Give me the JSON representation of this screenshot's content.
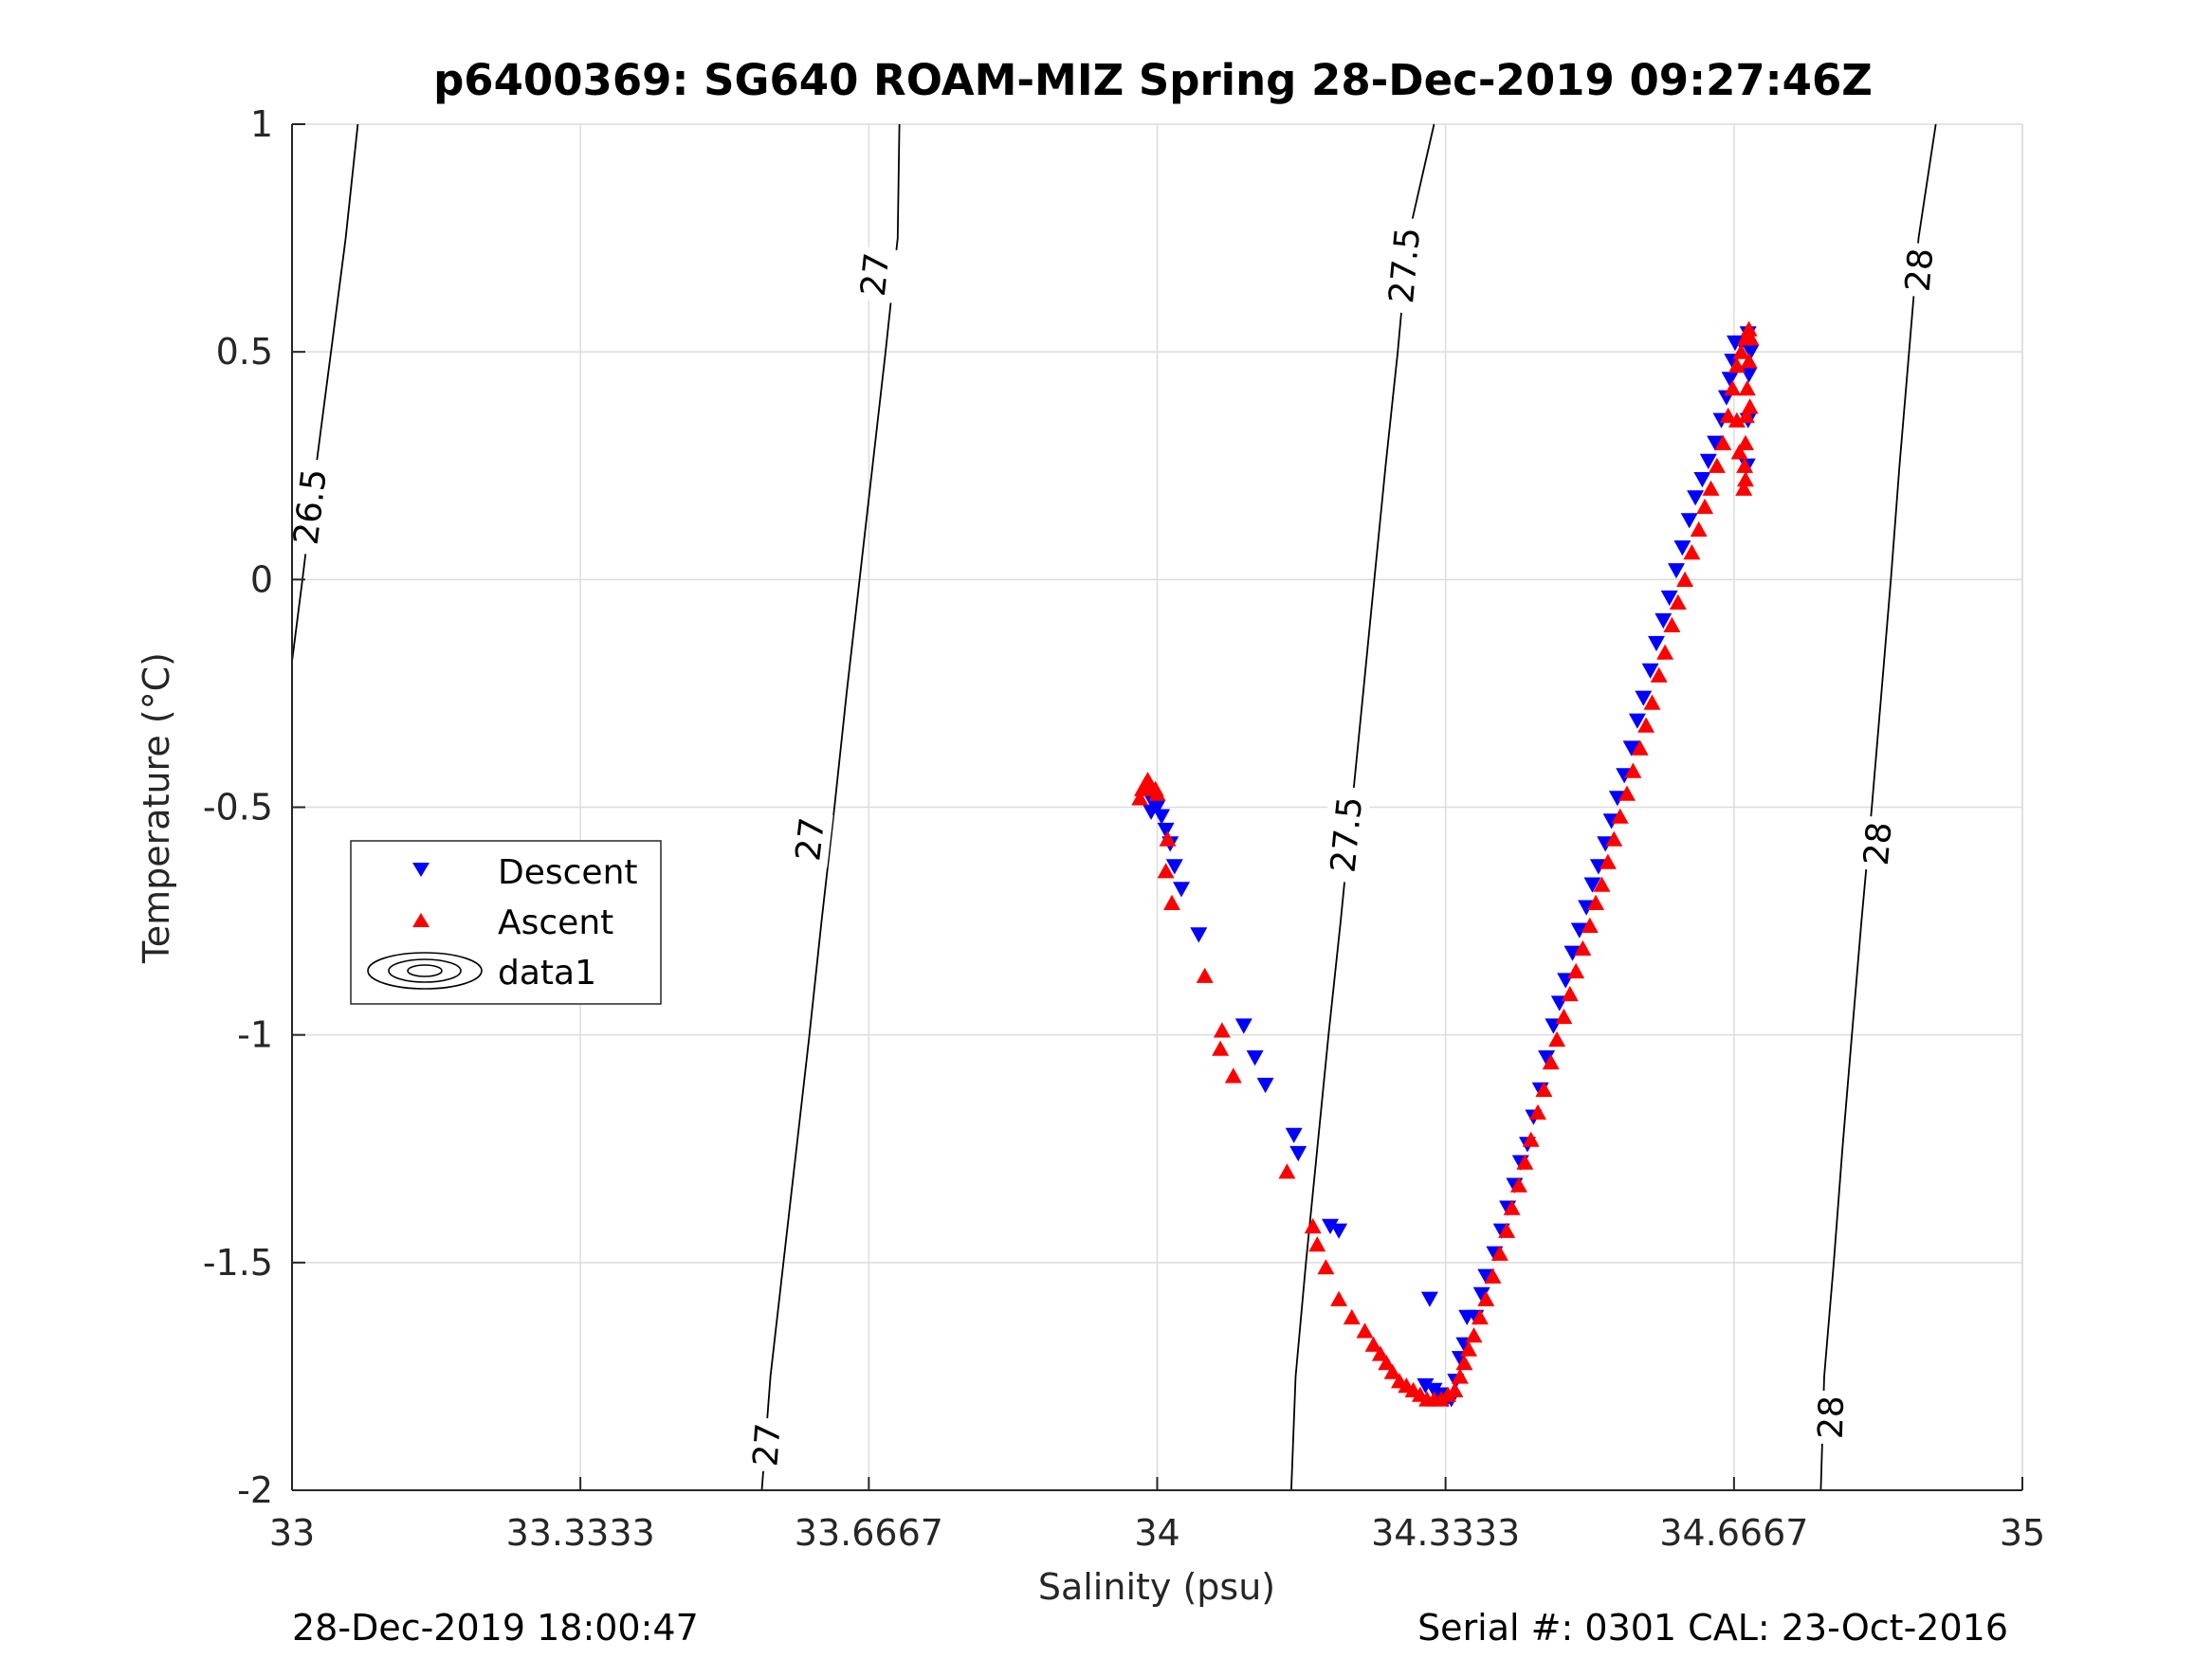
{
  "chart_data": {
    "type": "scatter",
    "title": "p6400369: SG640 ROAM-MIZ Spring 28-Dec-2019 09:27:46Z",
    "xlabel": "Salinity (psu)",
    "ylabel": "Temperature (°C)",
    "xlim": [
      33,
      35
    ],
    "ylim": [
      -2,
      1
    ],
    "x_ticks": [
      {
        "value": 33,
        "label": "33"
      },
      {
        "value": 33.3333,
        "label": "33.3333"
      },
      {
        "value": 33.6667,
        "label": "33.6667"
      },
      {
        "value": 34,
        "label": "34"
      },
      {
        "value": 34.3333,
        "label": "34.3333"
      },
      {
        "value": 34.6667,
        "label": "34.6667"
      },
      {
        "value": 35,
        "label": "35"
      }
    ],
    "y_ticks": [
      {
        "value": 1,
        "label": "1"
      },
      {
        "value": 0.5,
        "label": "0.5"
      },
      {
        "value": 0,
        "label": "0"
      },
      {
        "value": -0.5,
        "label": "-0.5"
      },
      {
        "value": -1,
        "label": "-1"
      },
      {
        "value": -1.5,
        "label": "-1.5"
      },
      {
        "value": -2,
        "label": "-2"
      }
    ],
    "grid": true,
    "legend": {
      "placement": "left",
      "entries": [
        {
          "label": "Descent",
          "marker": "triangle-down",
          "color": "#0000ff"
        },
        {
          "label": "Ascent",
          "marker": "triangle-up",
          "color": "#ff0000"
        },
        {
          "label": "data1",
          "marker": "contour",
          "color": "#000000"
        }
      ]
    },
    "contours": [
      {
        "level": 26.5,
        "points": [
          [
            33.0,
            -0.18
          ],
          [
            33.012,
            0.0
          ],
          [
            33.028,
            0.25
          ],
          [
            33.045,
            0.5
          ],
          [
            33.062,
            0.75
          ],
          [
            33.076,
            1.0
          ]
        ],
        "labels": [
          {
            "text": "26.5",
            "x": 33.02,
            "y": 0.16
          }
        ]
      },
      {
        "level": 27,
        "points": [
          [
            33.543,
            -2.0
          ],
          [
            33.553,
            -1.75
          ],
          [
            33.568,
            -1.5
          ],
          [
            33.583,
            -1.25
          ],
          [
            33.598,
            -1.0
          ],
          [
            33.612,
            -0.75
          ],
          [
            33.627,
            -0.5
          ],
          [
            33.641,
            -0.25
          ],
          [
            33.656,
            0.0
          ],
          [
            33.671,
            0.25
          ],
          [
            33.686,
            0.5
          ],
          [
            33.7,
            0.75
          ],
          [
            33.702,
            1.0
          ]
        ],
        "labels": [
          {
            "text": "27",
            "x": 33.548,
            "y": -1.9
          },
          {
            "text": "27",
            "x": 33.598,
            "y": -0.57
          },
          {
            "text": "27",
            "x": 33.673,
            "y": 0.67
          }
        ]
      },
      {
        "level": 27.5,
        "points": [
          [
            34.155,
            -2.0
          ],
          [
            34.16,
            -1.75
          ],
          [
            34.172,
            -1.5
          ],
          [
            34.185,
            -1.25
          ],
          [
            34.198,
            -1.0
          ],
          [
            34.212,
            -0.75
          ],
          [
            34.225,
            -0.5
          ],
          [
            34.238,
            -0.25
          ],
          [
            34.251,
            0.0
          ],
          [
            34.264,
            0.25
          ],
          [
            34.278,
            0.5
          ],
          [
            34.29,
            0.75
          ],
          [
            34.32,
            1.0
          ]
        ],
        "labels": [
          {
            "text": "27.5",
            "x": 34.218,
            "y": -0.56
          },
          {
            "text": "27.5",
            "x": 34.285,
            "y": 0.69
          }
        ]
      },
      {
        "level": 28,
        "points": [
          [
            34.767,
            -2.0
          ],
          [
            34.771,
            -1.75
          ],
          [
            34.782,
            -1.5
          ],
          [
            34.792,
            -1.25
          ],
          [
            34.803,
            -1.0
          ],
          [
            34.814,
            -0.75
          ],
          [
            34.826,
            -0.5
          ],
          [
            34.837,
            -0.25
          ],
          [
            34.848,
            0.0
          ],
          [
            34.858,
            0.25
          ],
          [
            34.869,
            0.5
          ],
          [
            34.88,
            0.75
          ],
          [
            34.9,
            1.0
          ]
        ],
        "labels": [
          {
            "text": "28",
            "x": 34.778,
            "y": -1.84
          },
          {
            "text": "28",
            "x": 34.832,
            "y": -0.58
          },
          {
            "text": "28",
            "x": 34.88,
            "y": 0.68
          }
        ]
      }
    ],
    "series": [
      {
        "name": "Descent",
        "marker": "triangle-down",
        "color": "#0000ff",
        "points": [
          [
            33.995,
            -0.49
          ],
          [
            34.0,
            -0.5
          ],
          [
            33.993,
            -0.51
          ],
          [
            34.005,
            -0.52
          ],
          [
            34.01,
            -0.55
          ],
          [
            34.015,
            -0.58
          ],
          [
            34.02,
            -0.63
          ],
          [
            34.028,
            -0.68
          ],
          [
            34.048,
            -0.78
          ],
          [
            34.1,
            -0.98
          ],
          [
            34.113,
            -1.05
          ],
          [
            34.125,
            -1.11
          ],
          [
            34.158,
            -1.22
          ],
          [
            34.163,
            -1.26
          ],
          [
            34.2,
            -1.42
          ],
          [
            34.21,
            -1.43
          ],
          [
            34.315,
            -1.58
          ],
          [
            34.31,
            -1.77
          ],
          [
            34.32,
            -1.78
          ],
          [
            34.327,
            -1.79
          ],
          [
            34.335,
            -1.8
          ],
          [
            34.34,
            -1.8
          ],
          [
            34.345,
            -1.76
          ],
          [
            34.35,
            -1.71
          ],
          [
            34.355,
            -1.68
          ],
          [
            34.358,
            -1.62
          ],
          [
            34.368,
            -1.62
          ],
          [
            34.375,
            -1.57
          ],
          [
            34.38,
            -1.53
          ],
          [
            34.39,
            -1.48
          ],
          [
            34.398,
            -1.43
          ],
          [
            34.405,
            -1.38
          ],
          [
            34.413,
            -1.33
          ],
          [
            34.42,
            -1.28
          ],
          [
            34.428,
            -1.24
          ],
          [
            34.435,
            -1.18
          ],
          [
            34.443,
            -1.12
          ],
          [
            34.45,
            -1.05
          ],
          [
            34.458,
            -0.98
          ],
          [
            34.465,
            -0.93
          ],
          [
            34.472,
            -0.88
          ],
          [
            34.48,
            -0.82
          ],
          [
            34.488,
            -0.77
          ],
          [
            34.496,
            -0.72
          ],
          [
            34.503,
            -0.67
          ],
          [
            34.51,
            -0.63
          ],
          [
            34.518,
            -0.58
          ],
          [
            34.525,
            -0.53
          ],
          [
            34.532,
            -0.48
          ],
          [
            34.54,
            -0.43
          ],
          [
            34.548,
            -0.37
          ],
          [
            34.555,
            -0.31
          ],
          [
            34.562,
            -0.26
          ],
          [
            34.57,
            -0.2
          ],
          [
            34.577,
            -0.14
          ],
          [
            34.585,
            -0.09
          ],
          [
            34.592,
            -0.04
          ],
          [
            34.6,
            0.02
          ],
          [
            34.607,
            0.07
          ],
          [
            34.615,
            0.13
          ],
          [
            34.622,
            0.18
          ],
          [
            34.63,
            0.22
          ],
          [
            34.637,
            0.26
          ],
          [
            34.645,
            0.3
          ],
          [
            34.652,
            0.35
          ],
          [
            34.658,
            0.4
          ],
          [
            34.662,
            0.44
          ],
          [
            34.665,
            0.48
          ],
          [
            34.668,
            0.52
          ],
          [
            34.675,
            0.52
          ],
          [
            34.683,
            0.54
          ],
          [
            34.686,
            0.5
          ],
          [
            34.684,
            0.45
          ],
          [
            34.683,
            0.35
          ],
          [
            34.682,
            0.25
          ]
        ]
      },
      {
        "name": "Ascent",
        "marker": "triangle-up",
        "color": "#ff0000",
        "points": [
          [
            33.98,
            -0.48
          ],
          [
            33.983,
            -0.46
          ],
          [
            33.986,
            -0.45
          ],
          [
            33.989,
            -0.44
          ],
          [
            33.992,
            -0.45
          ],
          [
            33.995,
            -0.46
          ],
          [
            33.998,
            -0.46
          ],
          [
            34.0,
            -0.47
          ],
          [
            34.012,
            -0.57
          ],
          [
            34.01,
            -0.64
          ],
          [
            34.017,
            -0.71
          ],
          [
            34.055,
            -0.87
          ],
          [
            34.075,
            -0.99
          ],
          [
            34.073,
            -1.03
          ],
          [
            34.088,
            -1.09
          ],
          [
            34.15,
            -1.3
          ],
          [
            34.18,
            -1.42
          ],
          [
            34.185,
            -1.46
          ],
          [
            34.195,
            -1.51
          ],
          [
            34.21,
            -1.58
          ],
          [
            34.225,
            -1.62
          ],
          [
            34.24,
            -1.65
          ],
          [
            34.25,
            -1.68
          ],
          [
            34.258,
            -1.7
          ],
          [
            34.265,
            -1.72
          ],
          [
            34.272,
            -1.74
          ],
          [
            34.28,
            -1.76
          ],
          [
            34.288,
            -1.77
          ],
          [
            34.296,
            -1.78
          ],
          [
            34.304,
            -1.79
          ],
          [
            34.312,
            -1.8
          ],
          [
            34.32,
            -1.8
          ],
          [
            34.328,
            -1.8
          ],
          [
            34.336,
            -1.79
          ],
          [
            34.344,
            -1.78
          ],
          [
            34.35,
            -1.75
          ],
          [
            34.355,
            -1.72
          ],
          [
            34.36,
            -1.69
          ],
          [
            34.366,
            -1.66
          ],
          [
            34.373,
            -1.62
          ],
          [
            34.38,
            -1.58
          ],
          [
            34.388,
            -1.53
          ],
          [
            34.396,
            -1.48
          ],
          [
            34.404,
            -1.43
          ],
          [
            34.41,
            -1.38
          ],
          [
            34.418,
            -1.33
          ],
          [
            34.425,
            -1.28
          ],
          [
            34.432,
            -1.23
          ],
          [
            34.44,
            -1.17
          ],
          [
            34.447,
            -1.12
          ],
          [
            34.455,
            -1.06
          ],
          [
            34.462,
            -1.01
          ],
          [
            34.47,
            -0.96
          ],
          [
            34.477,
            -0.91
          ],
          [
            34.484,
            -0.86
          ],
          [
            34.492,
            -0.81
          ],
          [
            34.5,
            -0.76
          ],
          [
            34.507,
            -0.71
          ],
          [
            34.514,
            -0.67
          ],
          [
            34.521,
            -0.62
          ],
          [
            34.528,
            -0.57
          ],
          [
            34.535,
            -0.52
          ],
          [
            34.543,
            -0.47
          ],
          [
            34.55,
            -0.42
          ],
          [
            34.558,
            -0.37
          ],
          [
            34.565,
            -0.32
          ],
          [
            34.572,
            -0.27
          ],
          [
            34.58,
            -0.21
          ],
          [
            34.587,
            -0.16
          ],
          [
            34.595,
            -0.1
          ],
          [
            34.602,
            -0.05
          ],
          [
            34.61,
            0.0
          ],
          [
            34.618,
            0.06
          ],
          [
            34.626,
            0.11
          ],
          [
            34.633,
            0.16
          ],
          [
            34.64,
            0.2
          ],
          [
            34.647,
            0.25
          ],
          [
            34.654,
            0.3
          ],
          [
            34.66,
            0.36
          ],
          [
            34.665,
            0.42
          ],
          [
            34.67,
            0.47
          ],
          [
            34.675,
            0.5
          ],
          [
            34.68,
            0.53
          ],
          [
            34.684,
            0.55
          ],
          [
            34.686,
            0.53
          ],
          [
            34.684,
            0.48
          ],
          [
            34.682,
            0.42
          ],
          [
            34.681,
            0.36
          ],
          [
            34.68,
            0.3
          ],
          [
            34.679,
            0.25
          ],
          [
            34.68,
            0.22
          ],
          [
            34.678,
            0.2
          ],
          [
            34.685,
            0.38
          ],
          [
            34.673,
            0.28
          ],
          [
            34.67,
            0.35
          ]
        ]
      }
    ]
  },
  "footer": {
    "left": "28-Dec-2019 18:00:47",
    "right": "Serial #: 0301  CAL: 23-Oct-2016"
  }
}
